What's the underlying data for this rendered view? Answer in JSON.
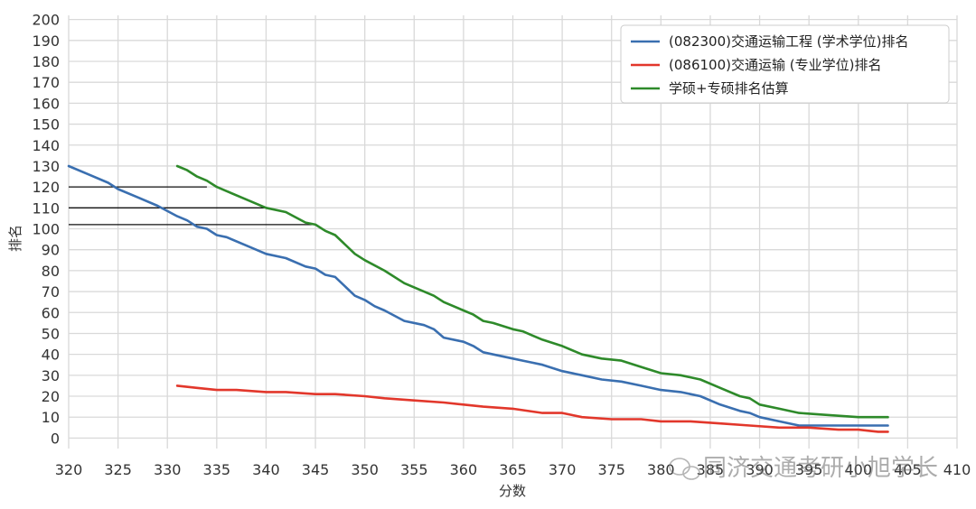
{
  "chart_data": {
    "type": "line",
    "title": "",
    "xlabel": "分数",
    "ylabel": "排名",
    "xlim": [
      320,
      410
    ],
    "ylim": [
      -5,
      202
    ],
    "xticks": [
      320,
      325,
      330,
      335,
      340,
      345,
      350,
      355,
      360,
      365,
      370,
      375,
      380,
      385,
      390,
      395,
      400,
      405,
      410
    ],
    "yticks": [
      0,
      10,
      20,
      30,
      40,
      50,
      60,
      70,
      80,
      90,
      100,
      110,
      120,
      130,
      140,
      150,
      160,
      170,
      180,
      190,
      200
    ],
    "grid": true,
    "legend_position": "top-right",
    "series": [
      {
        "name": "(082300)交通运输工程 (学术学位)排名",
        "color": "#3a6fb0",
        "x": [
          320,
          322,
          324,
          325,
          327,
          329,
          331,
          332,
          333,
          334,
          335,
          336,
          338,
          340,
          342,
          344,
          345,
          346,
          347,
          349,
          350,
          351,
          352,
          354,
          356,
          357,
          358,
          360,
          361,
          362,
          363,
          365,
          366,
          367,
          368,
          370,
          372,
          374,
          376,
          378,
          380,
          382,
          384,
          386,
          388,
          389,
          390,
          392,
          394,
          397,
          400,
          403
        ],
        "y": [
          130,
          126,
          122,
          119,
          115,
          111,
          106,
          104,
          101,
          100,
          97,
          96,
          92,
          88,
          86,
          82,
          81,
          78,
          77,
          68,
          66,
          63,
          61,
          56,
          54,
          52,
          48,
          46,
          44,
          41,
          40,
          38,
          37,
          36,
          35,
          32,
          30,
          28,
          27,
          25,
          23,
          22,
          20,
          16,
          13,
          12,
          10,
          8,
          6,
          6,
          6,
          6
        ]
      },
      {
        "name": "(086100)交通运输 (专业学位)排名",
        "color": "#e2372b",
        "x": [
          331,
          333,
          335,
          337,
          340,
          342,
          345,
          347,
          350,
          352,
          355,
          358,
          360,
          362,
          365,
          368,
          370,
          371,
          372,
          375,
          378,
          380,
          383,
          386,
          389,
          392,
          395,
          398,
          400,
          402,
          403
        ],
        "y": [
          25,
          24,
          23,
          23,
          22,
          22,
          21,
          21,
          20,
          19,
          18,
          17,
          16,
          15,
          14,
          12,
          12,
          11,
          10,
          9,
          9,
          8,
          8,
          7,
          6,
          5,
          5,
          4,
          4,
          3,
          3
        ]
      },
      {
        "name": "学硕+专硕排名估算",
        "color": "#2e8a2a",
        "x": [
          331,
          332,
          333,
          334,
          335,
          336,
          338,
          340,
          342,
          344,
          345,
          346,
          347,
          349,
          350,
          352,
          354,
          356,
          357,
          358,
          360,
          361,
          362,
          363,
          365,
          366,
          367,
          368,
          370,
          372,
          374,
          376,
          378,
          380,
          382,
          384,
          386,
          388,
          389,
          390,
          392,
          394,
          397,
          400,
          403
        ],
        "y": [
          130,
          128,
          125,
          123,
          120,
          118,
          114,
          110,
          108,
          103,
          102,
          99,
          97,
          88,
          85,
          80,
          74,
          70,
          68,
          65,
          61,
          59,
          56,
          55,
          52,
          51,
          49,
          47,
          44,
          40,
          38,
          37,
          34,
          31,
          30,
          28,
          24,
          20,
          19,
          16,
          14,
          12,
          11,
          10,
          10
        ]
      }
    ],
    "reference_lines": [
      {
        "y": 120,
        "x_start": 320,
        "x_end": 334
      },
      {
        "y": 110,
        "x_start": 320,
        "x_end": 340
      },
      {
        "y": 102,
        "x_start": 320,
        "x_end": 345
      }
    ]
  },
  "watermark": {
    "text": "同济交通考研小旭学长",
    "icon": "wechat-icon"
  }
}
